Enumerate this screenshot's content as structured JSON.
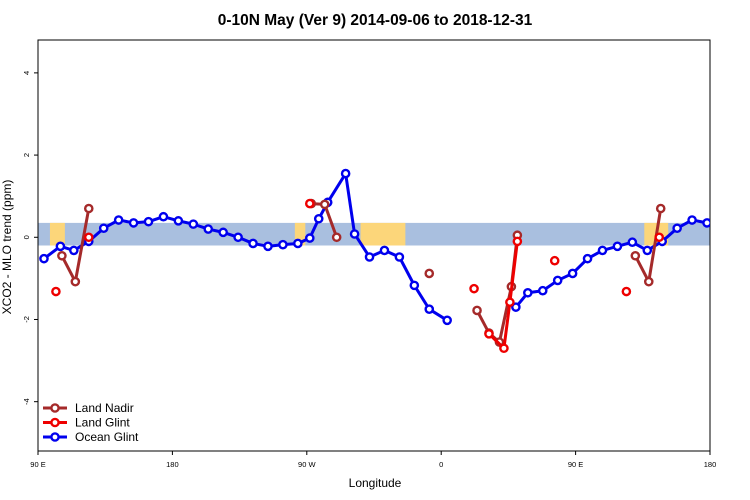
{
  "chart_data": {
    "type": "line",
    "title": "0-10N May (Ver 9)   2014-09-06 to 2018-12-31",
    "xlabel": "Longitude",
    "ylabel": "XCO2 - MLO trend (ppm)",
    "x_ticks": [
      {
        "value": -90,
        "label": "90 E"
      },
      {
        "value": -45,
        "label": "180"
      },
      {
        "value": 0,
        "label": "90 W"
      },
      {
        "value": 45,
        "label": "0"
      },
      {
        "value": 90,
        "label": "90 E"
      },
      {
        "value": 135,
        "label": "180"
      }
    ],
    "y_ticks": [
      {
        "value": -4,
        "label": "-4"
      },
      {
        "value": -2,
        "label": "-2"
      },
      {
        "value": 0,
        "label": "0"
      },
      {
        "value": 2,
        "label": "2"
      },
      {
        "value": 4,
        "label": "4"
      }
    ],
    "xlim": [
      -90,
      135
    ],
    "ylim": [
      -5.2,
      4.8
    ],
    "grid": false,
    "legend_position": "bottom-left",
    "background_band": {
      "description": "latitude strip map 0-10N: ocean and land",
      "ymin": -0.2,
      "ymax": 0.35,
      "ocean_color": "#a9bfdf",
      "land_color": "#fcd67a",
      "land_ranges": [
        [
          -86,
          -81
        ],
        [
          -4,
          -0.5
        ],
        [
          18,
          33
        ],
        [
          113,
          121
        ]
      ]
    },
    "series": [
      {
        "name": "Land Nadir",
        "color": "#a52a2a",
        "segments": [
          [
            [
              -82,
              -0.45
            ],
            [
              -77.5,
              -1.08
            ],
            [
              -73,
              0.7
            ]
          ],
          [
            [
              1.5,
              0.82
            ],
            [
              6,
              0.8
            ],
            [
              10,
              0.0
            ]
          ],
          [
            [
              41,
              -0.88
            ]
          ],
          [
            [
              57,
              -1.78
            ],
            [
              61,
              -2.33
            ],
            [
              64.5,
              -2.55
            ],
            [
              68.5,
              -1.2
            ],
            [
              70.5,
              0.05
            ]
          ],
          [
            [
              110,
              -0.45
            ],
            [
              114.5,
              -1.08
            ],
            [
              118.5,
              0.7
            ]
          ]
        ]
      },
      {
        "name": "Land Glint",
        "color": "#ee0000",
        "segments": [
          [
            [
              -84,
              -1.32
            ]
          ],
          [
            [
              -73,
              0.0
            ]
          ],
          [
            [
              1,
              0.82
            ]
          ],
          [
            [
              56,
              -1.25
            ]
          ],
          [
            [
              61,
              -2.35
            ],
            [
              66,
              -2.7
            ],
            [
              68,
              -1.58
            ],
            [
              70.5,
              -0.1
            ]
          ],
          [
            [
              83,
              -0.57
            ]
          ],
          [
            [
              107,
              -1.32
            ]
          ],
          [
            [
              118,
              0.0
            ]
          ]
        ]
      },
      {
        "name": "Ocean Glint",
        "color": "#0000ee",
        "segments": [
          [
            [
              -88,
              -0.52
            ],
            [
              -82.5,
              -0.22
            ],
            [
              -78,
              -0.32
            ],
            [
              -73,
              -0.1
            ],
            [
              -68,
              0.22
            ],
            [
              -63,
              0.42
            ],
            [
              -58,
              0.35
            ],
            [
              -53,
              0.38
            ],
            [
              -48,
              0.5
            ],
            [
              -43,
              0.4
            ],
            [
              -38,
              0.32
            ],
            [
              -33,
              0.2
            ],
            [
              -28,
              0.12
            ],
            [
              -23,
              0.0
            ],
            [
              -18,
              -0.15
            ],
            [
              -13,
              -0.22
            ],
            [
              -8,
              -0.18
            ],
            [
              -3,
              -0.15
            ],
            [
              1,
              -0.02
            ],
            [
              4,
              0.45
            ],
            [
              7,
              0.85
            ],
            [
              13,
              1.55
            ],
            [
              16,
              0.08
            ],
            [
              21,
              -0.48
            ],
            [
              26,
              -0.32
            ],
            [
              31,
              -0.48
            ],
            [
              36,
              -1.17
            ],
            [
              41,
              -1.75
            ],
            [
              47,
              -2.02
            ]
          ],
          [
            [
              70,
              -1.7
            ],
            [
              74,
              -1.35
            ],
            [
              79,
              -1.3
            ],
            [
              84,
              -1.05
            ],
            [
              89,
              -0.88
            ],
            [
              94,
              -0.52
            ],
            [
              99,
              -0.32
            ],
            [
              104,
              -0.22
            ],
            [
              109,
              -0.12
            ],
            [
              114,
              -0.32
            ],
            [
              119,
              -0.1
            ],
            [
              124,
              0.22
            ],
            [
              129,
              0.42
            ],
            [
              134,
              0.35
            ],
            [
              139,
              0.38
            ],
            [
              144,
              0.5
            ]
          ]
        ]
      }
    ]
  }
}
